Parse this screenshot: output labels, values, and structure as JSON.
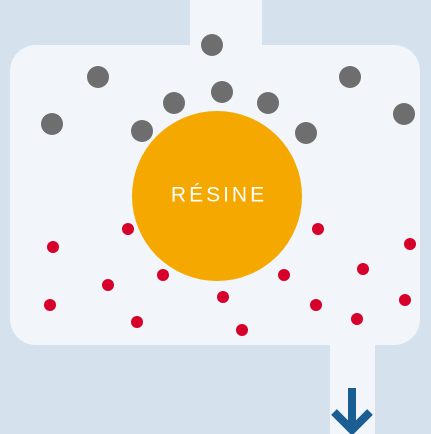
{
  "nodes": [
    {
      "label": "RÉSINE"
    }
  ]
}
